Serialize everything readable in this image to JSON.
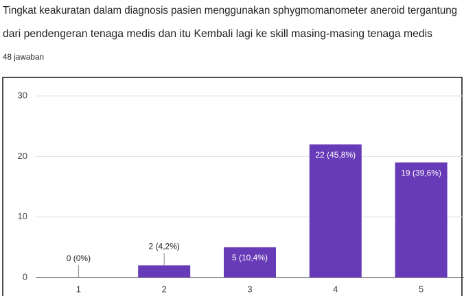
{
  "chart_data": {
    "type": "bar",
    "title": [
      "Tingkat keakuratan dalam diagnosis pasien menggunakan sphygmomanometer aneroid tergantung",
      "dari pendengeran tenaga medis dan itu Kembali lagi ke skill masing-masing tenaga medis"
    ],
    "subtitle": "48 jawaban",
    "categories": [
      "1",
      "2",
      "3",
      "4",
      "5"
    ],
    "values": [
      0,
      2,
      5,
      22,
      19
    ],
    "value_labels": [
      "0 (0%)",
      "2 (4,2%)",
      "5 (10,4%)",
      "22 (45,8%)",
      "19 (39,6%)"
    ],
    "color": "#673ab7",
    "ylim": [
      0,
      30
    ],
    "yticks": [
      0,
      10,
      20,
      30
    ],
    "grid": true
  }
}
